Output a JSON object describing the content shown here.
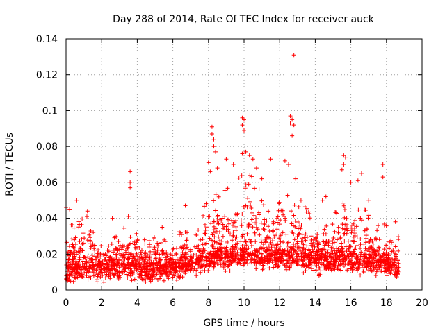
{
  "chart_data": {
    "type": "scatter",
    "title": "Day 288 of 2014, Rate Of TEC Index for receiver auck",
    "xlabel": "GPS time / hours",
    "ylabel": "ROTI / TECUs",
    "xlim": [
      0,
      20
    ],
    "ylim": [
      0,
      0.14
    ],
    "xticks": [
      0,
      2,
      4,
      6,
      8,
      10,
      12,
      14,
      16,
      18,
      20
    ],
    "yticks": [
      0,
      0.02,
      0.04,
      0.06,
      0.08,
      0.1,
      0.12,
      0.14
    ],
    "ytick_labels": [
      "0",
      "0.02",
      "0.04",
      "0.06",
      "0.08",
      "0.1",
      "0.12",
      "0.14"
    ],
    "grid": true,
    "marker": "plus",
    "color": "#ff0000",
    "x_range_of_data": [
      0,
      18.7
    ],
    "envelope": [
      {
        "x": 0.0,
        "base": 0.01,
        "peak": 0.04
      },
      {
        "x": 0.5,
        "base": 0.011,
        "peak": 0.035
      },
      {
        "x": 1.0,
        "base": 0.012,
        "peak": 0.043
      },
      {
        "x": 1.5,
        "base": 0.012,
        "peak": 0.037
      },
      {
        "x": 2.0,
        "base": 0.011,
        "peak": 0.025
      },
      {
        "x": 2.5,
        "base": 0.012,
        "peak": 0.03
      },
      {
        "x": 3.0,
        "base": 0.013,
        "peak": 0.035
      },
      {
        "x": 3.5,
        "base": 0.013,
        "peak": 0.038
      },
      {
        "x": 4.0,
        "base": 0.012,
        "peak": 0.036
      },
      {
        "x": 4.5,
        "base": 0.011,
        "peak": 0.027
      },
      {
        "x": 5.0,
        "base": 0.011,
        "peak": 0.03
      },
      {
        "x": 5.5,
        "base": 0.012,
        "peak": 0.028
      },
      {
        "x": 6.0,
        "base": 0.012,
        "peak": 0.03
      },
      {
        "x": 6.5,
        "base": 0.013,
        "peak": 0.034
      },
      {
        "x": 7.0,
        "base": 0.014,
        "peak": 0.033
      },
      {
        "x": 7.5,
        "base": 0.015,
        "peak": 0.036
      },
      {
        "x": 8.0,
        "base": 0.017,
        "peak": 0.06
      },
      {
        "x": 8.5,
        "base": 0.018,
        "peak": 0.058
      },
      {
        "x": 9.0,
        "base": 0.018,
        "peak": 0.06
      },
      {
        "x": 9.5,
        "base": 0.019,
        "peak": 0.062
      },
      {
        "x": 10.0,
        "base": 0.019,
        "peak": 0.07
      },
      {
        "x": 10.5,
        "base": 0.019,
        "peak": 0.065
      },
      {
        "x": 11.0,
        "base": 0.018,
        "peak": 0.055
      },
      {
        "x": 11.5,
        "base": 0.018,
        "peak": 0.05
      },
      {
        "x": 12.0,
        "base": 0.018,
        "peak": 0.058
      },
      {
        "x": 12.5,
        "base": 0.019,
        "peak": 0.065
      },
      {
        "x": 13.0,
        "base": 0.018,
        "peak": 0.052
      },
      {
        "x": 13.5,
        "base": 0.017,
        "peak": 0.046
      },
      {
        "x": 14.0,
        "base": 0.016,
        "peak": 0.04
      },
      {
        "x": 14.5,
        "base": 0.016,
        "peak": 0.038
      },
      {
        "x": 15.0,
        "base": 0.016,
        "peak": 0.04
      },
      {
        "x": 15.5,
        "base": 0.017,
        "peak": 0.055
      },
      {
        "x": 16.0,
        "base": 0.017,
        "peak": 0.05
      },
      {
        "x": 16.5,
        "base": 0.016,
        "peak": 0.058
      },
      {
        "x": 17.0,
        "base": 0.015,
        "peak": 0.045
      },
      {
        "x": 17.5,
        "base": 0.015,
        "peak": 0.038
      },
      {
        "x": 18.0,
        "base": 0.014,
        "peak": 0.04
      },
      {
        "x": 18.5,
        "base": 0.013,
        "peak": 0.034
      },
      {
        "x": 18.7,
        "base": 0.012,
        "peak": 0.03
      }
    ],
    "outliers": [
      {
        "x": 0.0,
        "y": 0.046
      },
      {
        "x": 0.2,
        "y": 0.045
      },
      {
        "x": 0.6,
        "y": 0.05
      },
      {
        "x": 1.2,
        "y": 0.044
      },
      {
        "x": 2.6,
        "y": 0.04
      },
      {
        "x": 3.6,
        "y": 0.066
      },
      {
        "x": 3.6,
        "y": 0.06
      },
      {
        "x": 3.6,
        "y": 0.057
      },
      {
        "x": 3.5,
        "y": 0.041
      },
      {
        "x": 5.4,
        "y": 0.035
      },
      {
        "x": 6.7,
        "y": 0.047
      },
      {
        "x": 8.2,
        "y": 0.091
      },
      {
        "x": 8.2,
        "y": 0.087
      },
      {
        "x": 8.3,
        "y": 0.084
      },
      {
        "x": 8.3,
        "y": 0.08
      },
      {
        "x": 8.4,
        "y": 0.077
      },
      {
        "x": 8.0,
        "y": 0.071
      },
      {
        "x": 8.1,
        "y": 0.066
      },
      {
        "x": 8.5,
        "y": 0.068
      },
      {
        "x": 9.0,
        "y": 0.073
      },
      {
        "x": 9.4,
        "y": 0.07
      },
      {
        "x": 9.9,
        "y": 0.096
      },
      {
        "x": 10.0,
        "y": 0.095
      },
      {
        "x": 9.9,
        "y": 0.092
      },
      {
        "x": 10.0,
        "y": 0.089
      },
      {
        "x": 9.9,
        "y": 0.076
      },
      {
        "x": 10.1,
        "y": 0.077
      },
      {
        "x": 10.3,
        "y": 0.075
      },
      {
        "x": 10.5,
        "y": 0.073
      },
      {
        "x": 10.7,
        "y": 0.068
      },
      {
        "x": 11.0,
        "y": 0.062
      },
      {
        "x": 11.5,
        "y": 0.073
      },
      {
        "x": 12.6,
        "y": 0.097
      },
      {
        "x": 12.7,
        "y": 0.095
      },
      {
        "x": 12.6,
        "y": 0.093
      },
      {
        "x": 12.8,
        "y": 0.092
      },
      {
        "x": 12.7,
        "y": 0.086
      },
      {
        "x": 12.8,
        "y": 0.131
      },
      {
        "x": 12.3,
        "y": 0.072
      },
      {
        "x": 12.5,
        "y": 0.07
      },
      {
        "x": 12.9,
        "y": 0.062
      },
      {
        "x": 13.2,
        "y": 0.05
      },
      {
        "x": 14.4,
        "y": 0.05
      },
      {
        "x": 14.6,
        "y": 0.052
      },
      {
        "x": 15.6,
        "y": 0.075
      },
      {
        "x": 15.7,
        "y": 0.074
      },
      {
        "x": 15.6,
        "y": 0.07
      },
      {
        "x": 15.5,
        "y": 0.067
      },
      {
        "x": 16.0,
        "y": 0.06
      },
      {
        "x": 16.6,
        "y": 0.065
      },
      {
        "x": 16.4,
        "y": 0.061
      },
      {
        "x": 17.0,
        "y": 0.05
      },
      {
        "x": 17.8,
        "y": 0.07
      },
      {
        "x": 17.8,
        "y": 0.063
      },
      {
        "x": 18.5,
        "y": 0.038
      }
    ]
  }
}
